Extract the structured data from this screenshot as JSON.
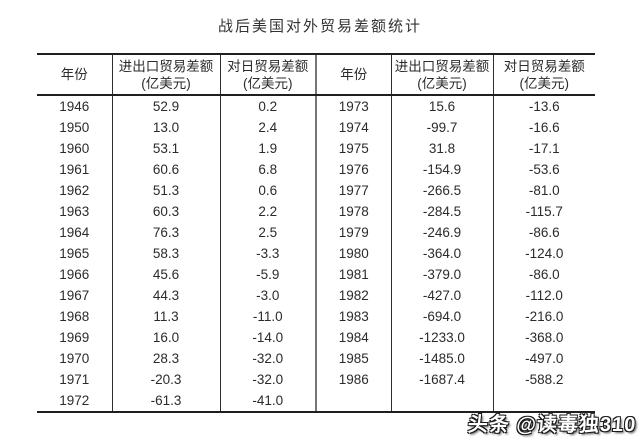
{
  "title": "战后美国对外贸易差额统计",
  "watermark": "头条 @读毒独310",
  "table": {
    "header": [
      {
        "line1": "年份",
        "line2": ""
      },
      {
        "line1": "进出口贸易差额",
        "line2": "(亿美元)"
      },
      {
        "line1": "对日贸易差额",
        "line2": "(亿美元)"
      },
      {
        "line1": "年份",
        "line2": ""
      },
      {
        "line1": "进出口贸易差额",
        "line2": "(亿美元)"
      },
      {
        "line1": "对日贸易差额",
        "line2": "(亿美元)"
      }
    ],
    "rows": [
      [
        "1946",
        "52.9",
        "0.2",
        "1973",
        "15.6",
        "-13.6"
      ],
      [
        "1950",
        "13.0",
        "2.4",
        "1974",
        "-99.7",
        "-16.6"
      ],
      [
        "1960",
        "53.1",
        "1.9",
        "1975",
        "31.8",
        "-17.1"
      ],
      [
        "1961",
        "60.6",
        "6.8",
        "1976",
        "-154.9",
        "-53.6"
      ],
      [
        "1962",
        "51.3",
        "0.6",
        "1977",
        "-266.5",
        "-81.0"
      ],
      [
        "1963",
        "60.3",
        "2.2",
        "1978",
        "-284.5",
        "-115.7"
      ],
      [
        "1964",
        "76.3",
        "2.5",
        "1979",
        "-246.9",
        "-86.6"
      ],
      [
        "1965",
        "58.3",
        "-3.3",
        "1980",
        "-364.0",
        "-124.0"
      ],
      [
        "1966",
        "45.6",
        "-5.9",
        "1981",
        "-379.0",
        "-86.0"
      ],
      [
        "1967",
        "44.3",
        "-3.0",
        "1982",
        "-427.0",
        "-112.0"
      ],
      [
        "1968",
        "11.3",
        "-11.0",
        "1983",
        "-694.0",
        "-216.0"
      ],
      [
        "1969",
        "16.0",
        "-14.0",
        "1984",
        "-1233.0",
        "-368.0"
      ],
      [
        "1970",
        "28.3",
        "-32.0",
        "1985",
        "-1485.0",
        "-497.0"
      ],
      [
        "1971",
        "-20.3",
        "-32.0",
        "1986",
        "-1687.4",
        "-588.2"
      ],
      [
        "1972",
        "-61.3",
        "-41.0",
        "",
        "",
        ""
      ]
    ]
  },
  "chart_data": {
    "type": "table",
    "title": "战后美国对外贸易差额统计",
    "columns": [
      "年份",
      "进出口贸易差额(亿美元)",
      "对日贸易差额(亿美元)"
    ],
    "rows": [
      [
        1946,
        52.9,
        0.2
      ],
      [
        1950,
        13.0,
        2.4
      ],
      [
        1960,
        53.1,
        1.9
      ],
      [
        1961,
        60.6,
        6.8
      ],
      [
        1962,
        51.3,
        0.6
      ],
      [
        1963,
        60.3,
        2.2
      ],
      [
        1964,
        76.3,
        2.5
      ],
      [
        1965,
        58.3,
        -3.3
      ],
      [
        1966,
        45.6,
        -5.9
      ],
      [
        1967,
        44.3,
        -3.0
      ],
      [
        1968,
        11.3,
        -11.0
      ],
      [
        1969,
        16.0,
        -14.0
      ],
      [
        1970,
        28.3,
        -32.0
      ],
      [
        1971,
        -20.3,
        -32.0
      ],
      [
        1972,
        -61.3,
        -41.0
      ],
      [
        1973,
        15.6,
        -13.6
      ],
      [
        1974,
        -99.7,
        -16.6
      ],
      [
        1975,
        31.8,
        -17.1
      ],
      [
        1976,
        -154.9,
        -53.6
      ],
      [
        1977,
        -266.5,
        -81.0
      ],
      [
        1978,
        -284.5,
        -115.7
      ],
      [
        1979,
        -246.9,
        -86.6
      ],
      [
        1980,
        -364.0,
        -124.0
      ],
      [
        1981,
        -379.0,
        -86.0
      ],
      [
        1982,
        -427.0,
        -112.0
      ],
      [
        1983,
        -694.0,
        -216.0
      ],
      [
        1984,
        -1233.0,
        -368.0
      ],
      [
        1985,
        -1485.0,
        -497.0
      ],
      [
        1986,
        -1687.4,
        -588.2
      ]
    ],
    "colors": {
      "text": "#2b2b2b",
      "rule": "#1f1f1f",
      "divider": "#767676",
      "background": "#ffffff"
    }
  }
}
